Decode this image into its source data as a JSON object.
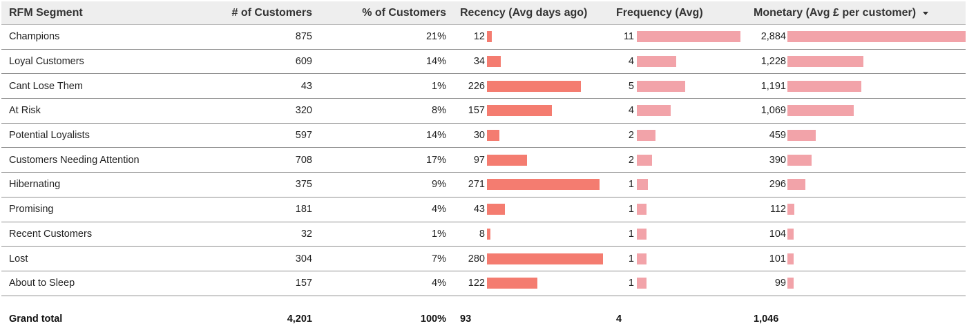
{
  "headers": {
    "segment": "RFM Segment",
    "customers": "# of Customers",
    "pct": "% of Customers",
    "recency": "Recency (Avg days ago)",
    "frequency": "Frequency (Avg)",
    "monetary": "Monetary (Avg £ per customer)"
  },
  "sort": {
    "column": "monetary",
    "direction": "descending",
    "icon": "sort-descending-icon"
  },
  "bar_scales": {
    "recency_max": 280,
    "frequency_max": 11,
    "monetary_max": 2884
  },
  "colors": {
    "header_bg": "#eeeeee",
    "recency_bar": "#f47c70",
    "frequency_bar": "#f2a3a9",
    "monetary_bar": "#f2a3a9"
  },
  "rows": [
    {
      "segment": "Champions",
      "customers": "875",
      "pct": "21%",
      "recency": "12",
      "recency_value": 12,
      "frequency": "11",
      "frequency_value": 11,
      "monetary": "2,884",
      "monetary_value": 2884
    },
    {
      "segment": "Loyal Customers",
      "customers": "609",
      "pct": "14%",
      "recency": "34",
      "recency_value": 34,
      "frequency": "4",
      "frequency_value": 4.2,
      "monetary": "1,228",
      "monetary_value": 1228
    },
    {
      "segment": "Cant Lose Them",
      "customers": "43",
      "pct": "1%",
      "recency": "226",
      "recency_value": 226,
      "frequency": "5",
      "frequency_value": 5.1,
      "monetary": "1,191",
      "monetary_value": 1191
    },
    {
      "segment": "At Risk",
      "customers": "320",
      "pct": "8%",
      "recency": "157",
      "recency_value": 157,
      "frequency": "4",
      "frequency_value": 3.6,
      "monetary": "1,069",
      "monetary_value": 1069
    },
    {
      "segment": "Potential Loyalists",
      "customers": "597",
      "pct": "14%",
      "recency": "30",
      "recency_value": 30,
      "frequency": "2",
      "frequency_value": 2.0,
      "monetary": "459",
      "monetary_value": 459
    },
    {
      "segment": "Customers Needing Attention",
      "customers": "708",
      "pct": "17%",
      "recency": "97",
      "recency_value": 97,
      "frequency": "2",
      "frequency_value": 1.6,
      "monetary": "390",
      "monetary_value": 390
    },
    {
      "segment": "Hibernating",
      "customers": "375",
      "pct": "9%",
      "recency": "271",
      "recency_value": 271,
      "frequency": "1",
      "frequency_value": 1.2,
      "monetary": "296",
      "monetary_value": 296
    },
    {
      "segment": "Promising",
      "customers": "181",
      "pct": "4%",
      "recency": "43",
      "recency_value": 43,
      "frequency": "1",
      "frequency_value": 1.0,
      "monetary": "112",
      "monetary_value": 112
    },
    {
      "segment": "Recent Customers",
      "customers": "32",
      "pct": "1%",
      "recency": "8",
      "recency_value": 8,
      "frequency": "1",
      "frequency_value": 1.0,
      "monetary": "104",
      "monetary_value": 104
    },
    {
      "segment": "Lost",
      "customers": "304",
      "pct": "7%",
      "recency": "280",
      "recency_value": 280,
      "frequency": "1",
      "frequency_value": 1.0,
      "monetary": "101",
      "monetary_value": 101
    },
    {
      "segment": "About to Sleep",
      "customers": "157",
      "pct": "4%",
      "recency": "122",
      "recency_value": 122,
      "frequency": "1",
      "frequency_value": 1.0,
      "monetary": "99",
      "monetary_value": 99
    }
  ],
  "total": {
    "label": "Grand total",
    "customers": "4,201",
    "pct": "100%",
    "recency": "93",
    "frequency": "4",
    "monetary": "1,046"
  }
}
